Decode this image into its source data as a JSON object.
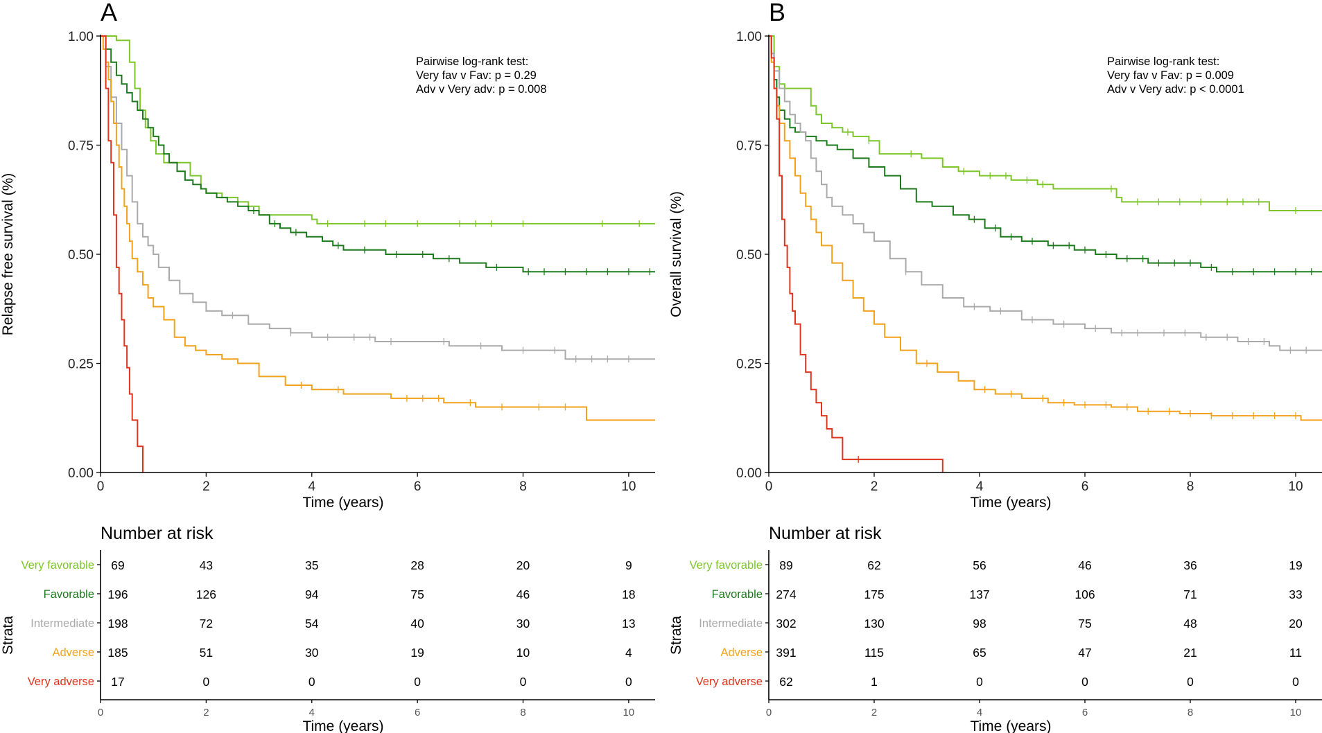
{
  "colors": {
    "very_favorable": "#7dc62a",
    "favorable": "#1c7a1c",
    "intermediate": "#aaaaaa",
    "adverse": "#f2a11b",
    "very_adverse": "#e0341c"
  },
  "chart_data": [
    {
      "type": "line",
      "panel": "A",
      "xlabel": "Time (years)",
      "ylabel": "Relapse free survival (%)",
      "xlim": [
        0,
        10.5
      ],
      "ylim": [
        0,
        1
      ],
      "xticks": [
        "0",
        "2",
        "4",
        "6",
        "8",
        "10"
      ],
      "yticks": [
        "0.00",
        "0.25",
        "0.50",
        "0.75",
        "1.00"
      ],
      "annotation": [
        "Pairwise log-rank test:",
        "Very fav v Fav:  p = 0.29",
        "Adv v Very adv: p = 0.008"
      ],
      "series": [
        {
          "name": "Very favorable",
          "key": "very_favorable",
          "x": [
            0,
            0.3,
            0.5,
            0.55,
            0.65,
            0.75,
            0.85,
            0.95,
            1.05,
            1.2,
            1.4,
            1.7,
            1.9,
            2.0,
            2.3,
            2.6,
            2.8,
            3.0,
            3.5,
            4.0,
            4.1,
            10.5
          ],
          "y": [
            1.0,
            0.99,
            0.99,
            0.94,
            0.88,
            0.83,
            0.79,
            0.76,
            0.73,
            0.71,
            0.71,
            0.68,
            0.65,
            0.64,
            0.63,
            0.62,
            0.61,
            0.59,
            0.59,
            0.58,
            0.57,
            0.57
          ],
          "censor": [
            4.3,
            5.0,
            5.4,
            6.0,
            6.8,
            7.1,
            7.4,
            8.0,
            9.5,
            10.2
          ]
        },
        {
          "name": "Favorable",
          "key": "favorable",
          "x": [
            0,
            0.1,
            0.2,
            0.3,
            0.4,
            0.5,
            0.6,
            0.7,
            0.8,
            0.9,
            1.0,
            1.1,
            1.2,
            1.3,
            1.45,
            1.6,
            1.75,
            1.9,
            2.0,
            2.2,
            2.4,
            2.6,
            2.8,
            3.0,
            3.2,
            3.4,
            3.6,
            3.9,
            4.2,
            4.4,
            4.6,
            4.9,
            5.4,
            5.8,
            6.3,
            6.8,
            7.3,
            7.8,
            8.0,
            10.5
          ],
          "y": [
            1.0,
            0.97,
            0.94,
            0.91,
            0.89,
            0.87,
            0.85,
            0.83,
            0.81,
            0.79,
            0.77,
            0.75,
            0.73,
            0.71,
            0.69,
            0.67,
            0.66,
            0.65,
            0.64,
            0.63,
            0.62,
            0.61,
            0.6,
            0.59,
            0.57,
            0.56,
            0.55,
            0.54,
            0.53,
            0.52,
            0.51,
            0.51,
            0.5,
            0.5,
            0.49,
            0.48,
            0.47,
            0.47,
            0.46,
            0.46
          ],
          "censor": [
            2.9,
            3.3,
            3.7,
            4.5,
            5.0,
            5.6,
            6.1,
            6.6,
            7.5,
            8.1,
            8.4,
            8.8,
            9.2,
            9.6,
            10.0,
            10.4
          ]
        },
        {
          "name": "Intermediate",
          "key": "intermediate",
          "x": [
            0,
            0.1,
            0.2,
            0.3,
            0.4,
            0.5,
            0.6,
            0.7,
            0.8,
            0.9,
            1.0,
            1.1,
            1.3,
            1.5,
            1.75,
            2.0,
            2.3,
            2.8,
            3.2,
            3.6,
            4.0,
            4.6,
            5.2,
            6.0,
            6.6,
            7.6,
            8.5,
            8.8,
            10.5
          ],
          "y": [
            1.0,
            0.93,
            0.86,
            0.8,
            0.74,
            0.68,
            0.62,
            0.57,
            0.54,
            0.52,
            0.5,
            0.47,
            0.44,
            0.41,
            0.39,
            0.37,
            0.36,
            0.34,
            0.33,
            0.32,
            0.31,
            0.31,
            0.3,
            0.3,
            0.29,
            0.28,
            0.28,
            0.26,
            0.26
          ],
          "censor": [
            2.5,
            3.6,
            4.3,
            4.8,
            5.1,
            5.5,
            6.5,
            7.2,
            8.0,
            8.6,
            9.0,
            9.3,
            9.6,
            10.0
          ]
        },
        {
          "name": "Adverse",
          "key": "adverse",
          "x": [
            0,
            0.05,
            0.1,
            0.15,
            0.2,
            0.25,
            0.3,
            0.35,
            0.4,
            0.45,
            0.5,
            0.55,
            0.6,
            0.7,
            0.8,
            0.9,
            1.0,
            1.2,
            1.4,
            1.6,
            1.8,
            2.0,
            2.3,
            2.6,
            3.0,
            3.5,
            4.0,
            4.6,
            5.5,
            6.5,
            7.1,
            9.2,
            10.5
          ],
          "y": [
            1.0,
            0.97,
            0.94,
            0.9,
            0.85,
            0.8,
            0.75,
            0.7,
            0.65,
            0.61,
            0.57,
            0.53,
            0.49,
            0.46,
            0.43,
            0.4,
            0.38,
            0.35,
            0.31,
            0.29,
            0.28,
            0.27,
            0.26,
            0.25,
            0.22,
            0.2,
            0.19,
            0.18,
            0.17,
            0.16,
            0.15,
            0.12,
            0.12
          ],
          "censor": [
            3.8,
            4.5,
            5.8,
            6.1,
            6.4,
            7.0,
            7.6,
            8.3,
            8.8
          ]
        },
        {
          "name": "Very adverse",
          "key": "very_adverse",
          "x": [
            0,
            0.1,
            0.15,
            0.2,
            0.25,
            0.3,
            0.35,
            0.4,
            0.45,
            0.5,
            0.55,
            0.6,
            0.7,
            0.8,
            0.8
          ],
          "y": [
            1.0,
            0.88,
            0.76,
            0.71,
            0.59,
            0.47,
            0.41,
            0.35,
            0.29,
            0.24,
            0.18,
            0.12,
            0.06,
            0.06,
            0.0
          ],
          "censor": []
        }
      ],
      "risk_table": {
        "title": "Number at risk",
        "ylabel": "Strata",
        "xlabel": "Time (years)",
        "time_points": [
          0,
          2,
          4,
          6,
          8,
          10
        ],
        "rows": [
          {
            "label": "Very favorable",
            "key": "very_favorable",
            "counts": [
              "69",
              "43",
              "35",
              "28",
              "20",
              "9"
            ]
          },
          {
            "label": "Favorable",
            "key": "favorable",
            "counts": [
              "196",
              "126",
              "94",
              "75",
              "46",
              "18"
            ]
          },
          {
            "label": "Intermediate",
            "key": "intermediate",
            "counts": [
              "198",
              "72",
              "54",
              "40",
              "30",
              "13"
            ]
          },
          {
            "label": "Adverse",
            "key": "adverse",
            "counts": [
              "185",
              "51",
              "30",
              "19",
              "10",
              "4"
            ]
          },
          {
            "label": "Very adverse",
            "key": "very_adverse",
            "counts": [
              "17",
              "0",
              "0",
              "0",
              "0",
              "0"
            ]
          }
        ]
      }
    },
    {
      "type": "line",
      "panel": "B",
      "xlabel": "Time (years)",
      "ylabel": "Overall survival (%)",
      "xlim": [
        0,
        10.5
      ],
      "ylim": [
        0,
        1
      ],
      "xticks": [
        "0",
        "2",
        "4",
        "6",
        "8",
        "10"
      ],
      "yticks": [
        "0.00",
        "0.25",
        "0.50",
        "0.75",
        "1.00"
      ],
      "annotation": [
        "Pairwise log-rank test:",
        "Very fav v Fav: p = 0.009",
        "Adv v Very adv: p < 0.0001"
      ],
      "series": [
        {
          "name": "Very favorable",
          "key": "very_favorable",
          "x": [
            0,
            0.1,
            0.2,
            0.3,
            0.8,
            0.9,
            1.0,
            1.2,
            1.4,
            1.6,
            1.9,
            2.1,
            2.9,
            3.3,
            3.6,
            4.0,
            4.6,
            5.1,
            5.4,
            6.6,
            6.7,
            8.6,
            9.5,
            10.5
          ],
          "y": [
            1.0,
            0.93,
            0.89,
            0.88,
            0.84,
            0.82,
            0.8,
            0.79,
            0.78,
            0.77,
            0.76,
            0.73,
            0.72,
            0.7,
            0.69,
            0.68,
            0.67,
            0.66,
            0.65,
            0.63,
            0.62,
            0.62,
            0.6,
            0.6
          ],
          "censor": [
            1.5,
            1.9,
            2.7,
            3.7,
            4.2,
            4.5,
            4.9,
            5.2,
            6.5,
            7.0,
            7.4,
            7.8,
            8.2,
            8.7,
            9.0,
            9.3,
            10.0
          ]
        },
        {
          "name": "Favorable",
          "key": "favorable",
          "x": [
            0,
            0.05,
            0.1,
            0.15,
            0.2,
            0.3,
            0.4,
            0.5,
            0.7,
            0.9,
            1.1,
            1.3,
            1.6,
            1.9,
            2.2,
            2.5,
            2.8,
            3.1,
            3.5,
            3.8,
            4.1,
            4.4,
            4.8,
            5.3,
            5.8,
            6.2,
            6.6,
            7.2,
            7.8,
            8.2,
            8.5,
            10.5
          ],
          "y": [
            1.0,
            0.96,
            0.9,
            0.86,
            0.83,
            0.81,
            0.79,
            0.78,
            0.77,
            0.76,
            0.75,
            0.74,
            0.72,
            0.7,
            0.68,
            0.65,
            0.62,
            0.61,
            0.59,
            0.58,
            0.56,
            0.54,
            0.53,
            0.52,
            0.51,
            0.5,
            0.49,
            0.48,
            0.48,
            0.47,
            0.46,
            0.46
          ],
          "censor": [
            3.9,
            4.3,
            4.6,
            5.0,
            5.4,
            5.7,
            6.0,
            6.4,
            6.8,
            7.1,
            7.4,
            7.7,
            8.0,
            8.4,
            8.8,
            9.2,
            9.6,
            10.0,
            10.3
          ]
        },
        {
          "name": "Intermediate",
          "key": "intermediate",
          "x": [
            0,
            0.05,
            0.1,
            0.2,
            0.3,
            0.4,
            0.5,
            0.6,
            0.7,
            0.8,
            0.9,
            1.0,
            1.1,
            1.2,
            1.4,
            1.6,
            1.8,
            2.0,
            2.3,
            2.6,
            2.9,
            3.3,
            3.7,
            4.2,
            4.8,
            5.4,
            6.0,
            6.5,
            7.2,
            8.2,
            8.9,
            9.5,
            9.7,
            10.5
          ],
          "y": [
            1.0,
            0.96,
            0.92,
            0.88,
            0.85,
            0.82,
            0.8,
            0.78,
            0.76,
            0.72,
            0.69,
            0.66,
            0.63,
            0.61,
            0.59,
            0.57,
            0.55,
            0.53,
            0.49,
            0.46,
            0.43,
            0.4,
            0.38,
            0.37,
            0.35,
            0.34,
            0.33,
            0.32,
            0.32,
            0.31,
            0.3,
            0.29,
            0.28,
            0.28
          ],
          "censor": [
            2.6,
            3.9,
            4.4,
            5.0,
            5.6,
            6.2,
            6.7,
            7.0,
            7.5,
            7.9,
            8.3,
            8.7,
            9.1,
            9.4,
            9.9,
            10.2
          ]
        },
        {
          "name": "Adverse",
          "key": "adverse",
          "x": [
            0,
            0.05,
            0.1,
            0.15,
            0.2,
            0.3,
            0.4,
            0.5,
            0.6,
            0.7,
            0.8,
            0.9,
            1.0,
            1.2,
            1.4,
            1.6,
            1.8,
            2.0,
            2.2,
            2.5,
            2.8,
            3.2,
            3.6,
            3.9,
            4.3,
            4.8,
            5.3,
            5.8,
            6.5,
            7.0,
            7.4,
            7.8,
            8.4,
            9.0,
            10.1,
            10.5
          ],
          "y": [
            1.0,
            0.94,
            0.88,
            0.84,
            0.8,
            0.76,
            0.72,
            0.68,
            0.64,
            0.61,
            0.58,
            0.55,
            0.52,
            0.48,
            0.44,
            0.4,
            0.37,
            0.34,
            0.31,
            0.28,
            0.25,
            0.23,
            0.21,
            0.19,
            0.18,
            0.17,
            0.16,
            0.155,
            0.15,
            0.14,
            0.14,
            0.135,
            0.13,
            0.13,
            0.12,
            0.12
          ],
          "censor": [
            3.0,
            4.1,
            4.6,
            5.2,
            5.6,
            6.0,
            6.4,
            6.8,
            7.2,
            7.6,
            8.0,
            8.4,
            8.8,
            9.2,
            9.6,
            10.0
          ]
        },
        {
          "name": "Very adverse",
          "key": "very_adverse",
          "x": [
            0,
            0.05,
            0.1,
            0.15,
            0.2,
            0.25,
            0.3,
            0.35,
            0.4,
            0.45,
            0.5,
            0.6,
            0.7,
            0.8,
            0.9,
            1.0,
            1.1,
            1.2,
            1.4,
            3.3,
            3.3
          ],
          "y": [
            1.0,
            0.95,
            0.88,
            0.81,
            0.68,
            0.58,
            0.52,
            0.47,
            0.41,
            0.37,
            0.34,
            0.27,
            0.23,
            0.19,
            0.16,
            0.13,
            0.1,
            0.08,
            0.03,
            0.03,
            0.0
          ],
          "censor": [
            1.7
          ]
        }
      ],
      "risk_table": {
        "title": "Number at risk",
        "ylabel": "Strata",
        "xlabel": "Time (years)",
        "time_points": [
          0,
          2,
          4,
          6,
          8,
          10
        ],
        "rows": [
          {
            "label": "Very favorable",
            "key": "very_favorable",
            "counts": [
              "89",
              "62",
              "56",
              "46",
              "36",
              "19"
            ]
          },
          {
            "label": "Favorable",
            "key": "favorable",
            "counts": [
              "274",
              "175",
              "137",
              "106",
              "71",
              "33"
            ]
          },
          {
            "label": "Intermediate",
            "key": "intermediate",
            "counts": [
              "302",
              "130",
              "98",
              "75",
              "48",
              "20"
            ]
          },
          {
            "label": "Adverse",
            "key": "adverse",
            "counts": [
              "391",
              "115",
              "65",
              "47",
              "21",
              "11"
            ]
          },
          {
            "label": "Very adverse",
            "key": "very_adverse",
            "counts": [
              "62",
              "1",
              "0",
              "0",
              "0",
              "0"
            ]
          }
        ]
      }
    }
  ]
}
